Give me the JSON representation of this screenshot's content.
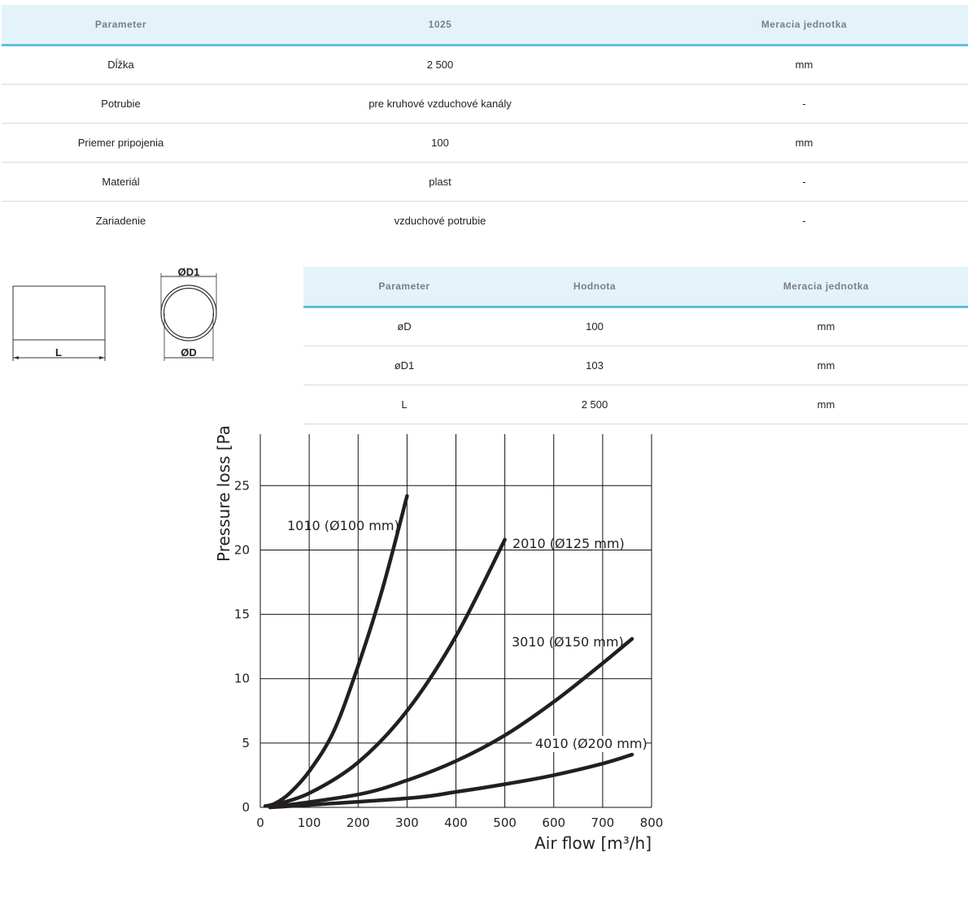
{
  "spec_table": {
    "headers": [
      "Parameter",
      "1025",
      "Meracia jednotka"
    ],
    "rows": [
      [
        "Dĺžka",
        "2 500",
        "mm"
      ],
      [
        "Potrubie",
        "pre kruhové vzduchové kanály",
        "-"
      ],
      [
        "Priemer pripojenia",
        "100",
        "mm"
      ],
      [
        "Materiál",
        "plast",
        "-"
      ],
      [
        "Zariadenie",
        "vzduchové potrubie",
        "-"
      ]
    ]
  },
  "dimension_drawing": {
    "length_label": "L",
    "outer_diameter_label": "ØD1",
    "inner_diameter_label": "ØD"
  },
  "dimension_table": {
    "headers": [
      "Parameter",
      "Hodnota",
      "Meracia jednotka"
    ],
    "rows": [
      [
        "øD",
        "100",
        "mm"
      ],
      [
        "øD1",
        "103",
        "mm"
      ],
      [
        "L",
        "2 500",
        "mm"
      ]
    ]
  },
  "chart_data": {
    "type": "line",
    "xlabel": "Air flow [m³/h]",
    "ylabel": "Pressure loss [Pa]",
    "xlim": [
      0,
      800
    ],
    "ylim": [
      0,
      29
    ],
    "xticks": [
      "0",
      "100",
      "200",
      "300",
      "400",
      "500",
      "600",
      "700",
      "800"
    ],
    "yticks": [
      "0",
      "5",
      "10",
      "15",
      "20",
      "25"
    ],
    "grid": true,
    "series": [
      {
        "name": "1010 (Ø100 mm)",
        "points": [
          [
            10,
            0.1
          ],
          [
            30,
            0.3
          ],
          [
            60,
            1.1
          ],
          [
            100,
            2.8
          ],
          [
            150,
            5.9
          ],
          [
            200,
            11.0
          ],
          [
            250,
            17.0
          ],
          [
            300,
            24.2
          ]
        ]
      },
      {
        "name": "2010 (Ø125 mm)",
        "points": [
          [
            20,
            0.1
          ],
          [
            100,
            1.1
          ],
          [
            200,
            3.5
          ],
          [
            300,
            7.5
          ],
          [
            400,
            13.3
          ],
          [
            500,
            20.8
          ]
        ]
      },
      {
        "name": "3010 (Ø150 mm)",
        "points": [
          [
            20,
            0.0
          ],
          [
            200,
            1.0
          ],
          [
            300,
            2.1
          ],
          [
            400,
            3.6
          ],
          [
            500,
            5.6
          ],
          [
            600,
            8.2
          ],
          [
            700,
            11.2
          ],
          [
            760,
            13.1
          ]
        ]
      },
      {
        "name": "4010 (Ø200 mm)",
        "points": [
          [
            20,
            0.0
          ],
          [
            300,
            0.7
          ],
          [
            400,
            1.2
          ],
          [
            500,
            1.8
          ],
          [
            600,
            2.5
          ],
          [
            700,
            3.4
          ],
          [
            760,
            4.1
          ]
        ]
      }
    ]
  }
}
